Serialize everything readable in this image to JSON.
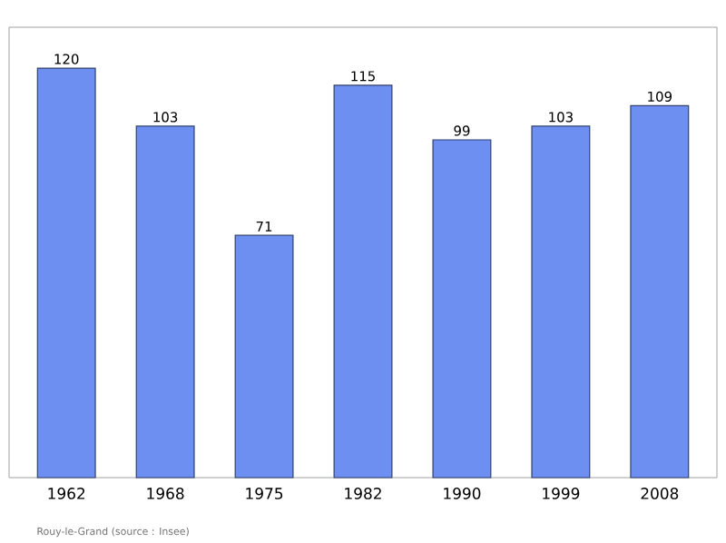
{
  "chart_data": {
    "type": "bar",
    "categories": [
      "1962",
      "1968",
      "1975",
      "1982",
      "1990",
      "1999",
      "2008"
    ],
    "values": [
      120,
      103,
      71,
      115,
      99,
      103,
      109
    ],
    "color": "#6e8ff2",
    "ylim": [
      0,
      132
    ],
    "data_labels": true,
    "annotations": [
      "Rouy-le-Grand    (source : Insee)"
    ]
  }
}
